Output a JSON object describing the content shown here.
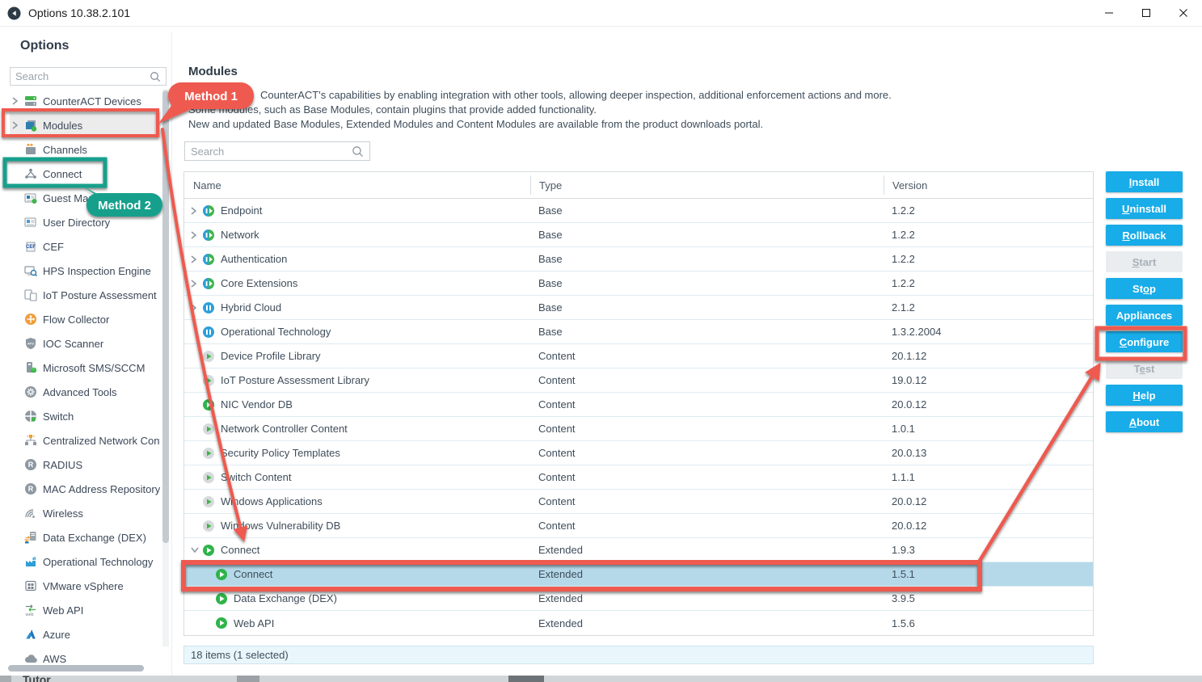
{
  "window": {
    "title": "Options 10.38.2.101",
    "controls": {
      "minimize": "minimize",
      "maximize": "maximize",
      "close": "close"
    }
  },
  "panel_title": "Options",
  "sidebar": {
    "search_placeholder": "Search",
    "items": [
      {
        "label": "CounterACT Devices",
        "icon": "devices-icon",
        "chevron": true
      },
      {
        "label": "Modules",
        "icon": "modules-icon",
        "chevron": true,
        "selected": true
      },
      {
        "label": "Channels",
        "icon": "channels-icon"
      },
      {
        "label": "Connect",
        "icon": "connect-icon"
      },
      {
        "label": "Guest Man",
        "icon": "guest-management-icon"
      },
      {
        "label": "User Directory",
        "icon": "user-directory-icon"
      },
      {
        "label": "CEF",
        "icon": "cef-icon"
      },
      {
        "label": "HPS Inspection Engine",
        "icon": "hps-inspection-icon"
      },
      {
        "label": "IoT Posture Assessment Eng",
        "icon": "iot-posture-icon"
      },
      {
        "label": "Flow Collector",
        "icon": "flow-collector-icon"
      },
      {
        "label": "IOC Scanner",
        "icon": "ioc-scanner-icon"
      },
      {
        "label": "Microsoft SMS/SCCM",
        "icon": "sms-sccm-icon"
      },
      {
        "label": "Advanced Tools",
        "icon": "advanced-tools-icon"
      },
      {
        "label": "Switch",
        "icon": "switch-icon"
      },
      {
        "label": "Centralized Network Control",
        "icon": "centralized-network-icon"
      },
      {
        "label": "RADIUS",
        "icon": "radius-icon"
      },
      {
        "label": "MAC Address Repository",
        "icon": "mac-repository-icon"
      },
      {
        "label": "Wireless",
        "icon": "wireless-icon"
      },
      {
        "label": "Data Exchange (DEX)",
        "icon": "dex-icon"
      },
      {
        "label": "Operational Technology",
        "icon": "operational-technology-icon"
      },
      {
        "label": "VMware vSphere",
        "icon": "vmware-icon"
      },
      {
        "label": "Web API",
        "icon": "web-api-icon"
      },
      {
        "label": "Azure",
        "icon": "azure-icon"
      },
      {
        "label": "AWS",
        "icon": "aws-icon"
      }
    ]
  },
  "main": {
    "title": "Modules",
    "description_lines": [
      "CounterACT's capabilities by enabling integration with other tools, allowing deeper inspection, additional enforcement actions and more.",
      "Some modules, such as Base Modules, contain plugins that provide added functionality.",
      "New and updated Base Modules, Extended Modules and Content Modules are available from the product downloads portal."
    ],
    "search_placeholder": "Search",
    "table": {
      "columns": [
        "Name",
        "Type",
        "Version"
      ],
      "rows": [
        {
          "name": "Endpoint",
          "type": "Base",
          "version": "1.2.2",
          "indent": 0,
          "chevron": "collapsed",
          "icon": "module-running-icon"
        },
        {
          "name": "Network",
          "type": "Base",
          "version": "1.2.2",
          "indent": 0,
          "chevron": "collapsed",
          "icon": "module-running-icon"
        },
        {
          "name": "Authentication",
          "type": "Base",
          "version": "1.2.2",
          "indent": 0,
          "chevron": "collapsed",
          "icon": "module-running-icon"
        },
        {
          "name": "Core Extensions",
          "type": "Base",
          "version": "1.2.2",
          "indent": 0,
          "chevron": "collapsed",
          "icon": "module-running-icon"
        },
        {
          "name": "Hybrid Cloud",
          "type": "Base",
          "version": "2.1.2",
          "indent": 0,
          "chevron": "collapsed",
          "icon": "module-paused-icon"
        },
        {
          "name": "Operational Technology",
          "type": "Base",
          "version": "1.3.2.2004",
          "indent": 0,
          "chevron": null,
          "icon": "module-paused-icon"
        },
        {
          "name": "Device Profile Library",
          "type": "Content",
          "version": "20.1.12",
          "indent": 0,
          "chevron": null,
          "icon": "content-module-icon"
        },
        {
          "name": "IoT Posture Assessment Library",
          "type": "Content",
          "version": "19.0.12",
          "indent": 0,
          "chevron": null,
          "icon": "content-module-icon"
        },
        {
          "name": "NIC Vendor DB",
          "type": "Content",
          "version": "20.0.12",
          "indent": 0,
          "chevron": null,
          "icon": "plugin-running-icon"
        },
        {
          "name": "Network Controller Content",
          "type": "Content",
          "version": "1.0.1",
          "indent": 0,
          "chevron": null,
          "icon": "content-module-icon"
        },
        {
          "name": "Security Policy Templates",
          "type": "Content",
          "version": "20.0.13",
          "indent": 0,
          "chevron": null,
          "icon": "content-module-icon"
        },
        {
          "name": "Switch Content",
          "type": "Content",
          "version": "1.1.1",
          "indent": 0,
          "chevron": null,
          "icon": "content-module-icon"
        },
        {
          "name": "Windows Applications",
          "type": "Content",
          "version": "20.0.12",
          "indent": 0,
          "chevron": null,
          "icon": "content-module-icon"
        },
        {
          "name": "Windows Vulnerability DB",
          "type": "Content",
          "version": "20.0.12",
          "indent": 0,
          "chevron": null,
          "icon": "content-module-icon"
        },
        {
          "name": "Connect",
          "type": "Extended",
          "version": "1.9.3",
          "indent": 0,
          "chevron": "expanded",
          "icon": "plugin-running-icon"
        },
        {
          "name": "Connect",
          "type": "Extended",
          "version": "1.5.1",
          "indent": 1,
          "chevron": null,
          "icon": "plugin-running-icon",
          "selected": true
        },
        {
          "name": "Data Exchange (DEX)",
          "type": "Extended",
          "version": "3.9.5",
          "indent": 1,
          "chevron": null,
          "icon": "plugin-running-icon"
        },
        {
          "name": "Web API",
          "type": "Extended",
          "version": "1.5.6",
          "indent": 1,
          "chevron": null,
          "icon": "plugin-running-icon"
        }
      ],
      "footer": "18 items (1 selected)"
    },
    "buttons": [
      {
        "label": "Install",
        "mnemonic": "I",
        "enabled": true
      },
      {
        "label": "Uninstall",
        "mnemonic": "U",
        "enabled": true
      },
      {
        "label": "Rollback",
        "mnemonic": "R",
        "enabled": true
      },
      {
        "label": "Start",
        "mnemonic": "S",
        "enabled": false
      },
      {
        "label": "Stop",
        "mnemonic": "o",
        "enabled": true
      },
      {
        "label": "Appliances",
        "mnemonic": null,
        "enabled": true
      },
      {
        "label": "Configure",
        "mnemonic": "C",
        "enabled": true
      },
      {
        "label": "Test",
        "mnemonic": "e",
        "enabled": false
      },
      {
        "label": "Help",
        "mnemonic": "H",
        "enabled": true
      },
      {
        "label": "About",
        "mnemonic": "A",
        "enabled": true
      }
    ]
  },
  "annotations": {
    "method1": "Method 1",
    "method2": "Method 2"
  },
  "bottom_fragment": "Tutor",
  "colors": {
    "button_blue": "#18ace8",
    "annotation_red": "#ee5a50",
    "annotation_teal": "#16a08c",
    "selected_row_blue": "#b5d9e9",
    "running_green": "#2eb44a",
    "paused_blue": "#2e9fd8"
  }
}
